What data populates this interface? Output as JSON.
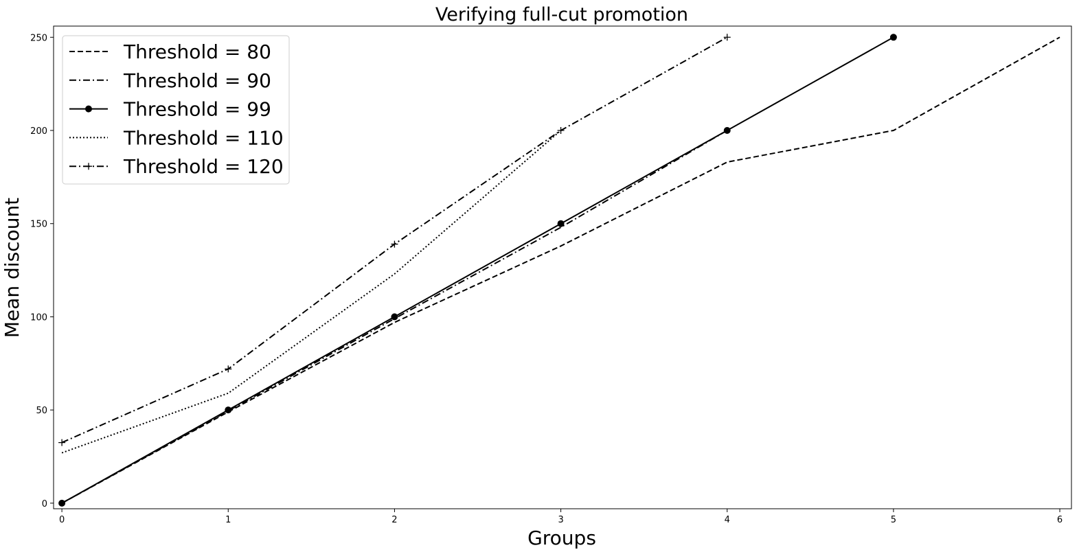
{
  "chart_data": {
    "type": "line",
    "title": "Verifying full-cut promotion",
    "xlabel": "Groups",
    "ylabel": "Mean discount",
    "xlim": [
      -0.05,
      6.07
    ],
    "ylim": [
      -3,
      256
    ],
    "xticks": [
      0,
      1,
      2,
      3,
      4,
      5,
      6
    ],
    "yticks": [
      0,
      50,
      100,
      150,
      200,
      250
    ],
    "grid": false,
    "legend_position": "top-left",
    "colors": {
      "line": "#000000",
      "background": "#ffffff"
    },
    "series": [
      {
        "name": "Threshold = 80",
        "style": "dashed",
        "marker": "none",
        "x": [
          0,
          1,
          2,
          3,
          4,
          5,
          6
        ],
        "y": [
          0,
          49,
          97,
          138,
          183,
          200,
          250
        ]
      },
      {
        "name": "Threshold = 90",
        "style": "dashdot",
        "marker": "none",
        "x": [
          0,
          1,
          2,
          3,
          4
        ],
        "y": [
          0,
          49.5,
          99,
          148,
          200
        ]
      },
      {
        "name": "Threshold = 99",
        "style": "solid",
        "marker": "circle",
        "x": [
          0,
          1,
          2,
          3,
          4,
          5
        ],
        "y": [
          0,
          50,
          100,
          150,
          200,
          250
        ]
      },
      {
        "name": "Threshold = 110",
        "style": "dotted",
        "marker": "none",
        "x": [
          0,
          1,
          2,
          3
        ],
        "y": [
          27,
          59,
          123,
          200
        ]
      },
      {
        "name": "Threshold = 120",
        "style": "dashdot",
        "marker": "plus",
        "x": [
          0,
          1,
          2,
          3,
          4
        ],
        "y": [
          32.5,
          72,
          139,
          200,
          250
        ]
      }
    ]
  }
}
